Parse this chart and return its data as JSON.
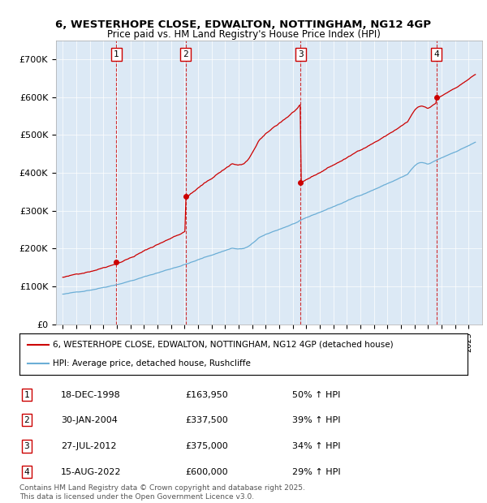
{
  "title_line1": "6, WESTERHOPE CLOSE, EDWALTON, NOTTINGHAM, NG12 4GP",
  "title_line2": "Price paid vs. HM Land Registry's House Price Index (HPI)",
  "bg_color": "#dce9f5",
  "red_color": "#cc0000",
  "blue_color": "#6baed6",
  "sale_dates": [
    1998.96,
    2004.08,
    2012.57,
    2022.62
  ],
  "sale_prices": [
    163950,
    337500,
    375000,
    600000
  ],
  "sale_labels": [
    "1",
    "2",
    "3",
    "4"
  ],
  "legend_line1": "6, WESTERHOPE CLOSE, EDWALTON, NOTTINGHAM, NG12 4GP (detached house)",
  "legend_line2": "HPI: Average price, detached house, Rushcliffe",
  "table_rows": [
    [
      "1",
      "18-DEC-1998",
      "£163,950",
      "50% ↑ HPI"
    ],
    [
      "2",
      "30-JAN-2004",
      "£337,500",
      "39% ↑ HPI"
    ],
    [
      "3",
      "27-JUL-2012",
      "£375,000",
      "34% ↑ HPI"
    ],
    [
      "4",
      "15-AUG-2022",
      "£600,000",
      "29% ↑ HPI"
    ]
  ],
  "footer": "Contains HM Land Registry data © Crown copyright and database right 2025.\nThis data is licensed under the Open Government Licence v3.0.",
  "ylim": [
    0,
    750000
  ],
  "yticks": [
    0,
    100000,
    200000,
    300000,
    400000,
    500000,
    600000,
    700000
  ],
  "ytick_labels": [
    "£0",
    "£100K",
    "£200K",
    "£300K",
    "£400K",
    "£500K",
    "£600K",
    "£700K"
  ],
  "xlim_start": 1994.5,
  "xlim_end": 2026.0
}
